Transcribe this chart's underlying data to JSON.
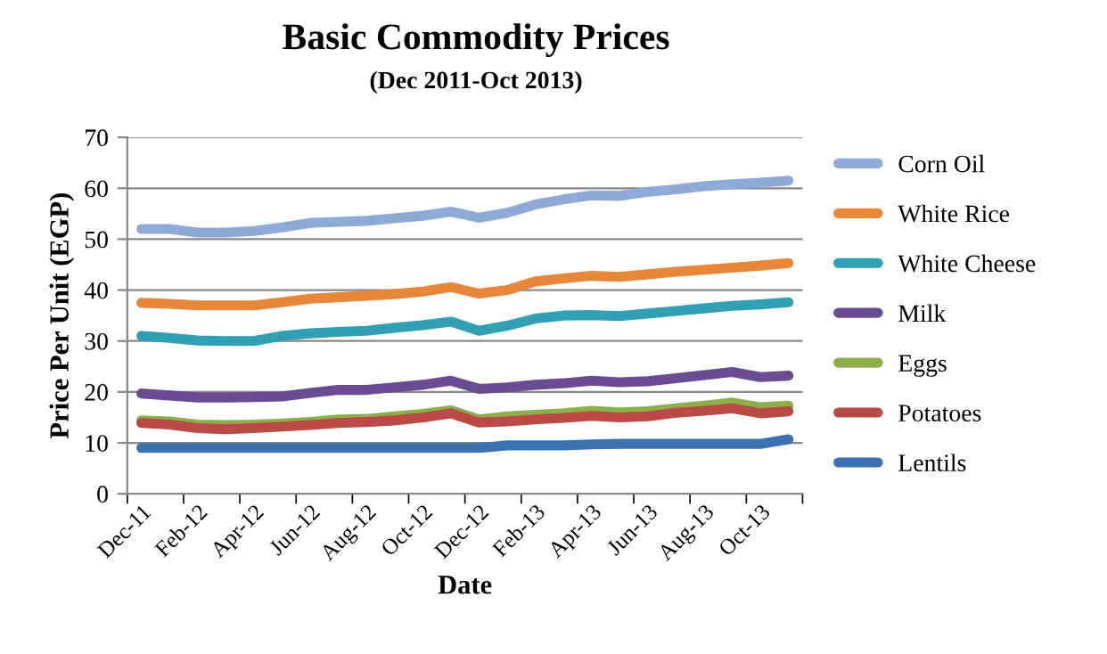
{
  "chart_data": {
    "type": "line",
    "title": "Basic Commodity Prices",
    "subtitle": "(Dec 2011-Oct 2013)",
    "xlabel": "Date",
    "ylabel": "Price Per Unit (EGP)",
    "categories": [
      "Dec-11",
      null,
      "Feb-12",
      null,
      "Apr-12",
      null,
      "Jun-12",
      null,
      "Aug-12",
      null,
      "Oct-12",
      null,
      "Dec-12",
      null,
      "Feb-13",
      null,
      "Apr-13",
      null,
      "Jun-13",
      null,
      "Aug-13",
      null,
      "Oct-13",
      null
    ],
    "series": [
      {
        "name": "Corn Oil",
        "color": "#8eaad6",
        "values": [
          52,
          52,
          51.3,
          51.3,
          51.6,
          52.3,
          53.2,
          53.4,
          53.6,
          54.1,
          54.6,
          55.4,
          54.2,
          55.2,
          56.8,
          57.8,
          58.6,
          58.5,
          59.3,
          59.8,
          60.4,
          60.8,
          61.1,
          61.5
        ]
      },
      {
        "name": "White Rice",
        "color": "#e6873a",
        "values": [
          37.5,
          37.3,
          37,
          37,
          37,
          37.6,
          38.3,
          38.6,
          38.9,
          39.2,
          39.7,
          40.6,
          39.3,
          40,
          41.7,
          42.3,
          42.8,
          42.6,
          43.1,
          43.6,
          44,
          44.4,
          44.8,
          45.3
        ]
      },
      {
        "name": "White Cheese",
        "color": "#31a0b3",
        "values": [
          31,
          30.6,
          30.1,
          30,
          30,
          31,
          31.5,
          31.8,
          32,
          32.6,
          33.1,
          33.8,
          32,
          33,
          34.4,
          35,
          35.1,
          34.9,
          35.4,
          35.9,
          36.4,
          36.9,
          37.2,
          37.6
        ]
      },
      {
        "name": "Milk",
        "color": "#6a4c93",
        "values": [
          19.7,
          19.3,
          18.9,
          18.9,
          19,
          19.1,
          19.8,
          20.4,
          20.4,
          20.9,
          21.4,
          22.2,
          20.6,
          20.9,
          21.4,
          21.7,
          22.2,
          21.9,
          22.1,
          22.7,
          23.3,
          23.9,
          22.9,
          23.2
        ]
      },
      {
        "name": "Eggs",
        "color": "#8bb04b",
        "values": [
          14.4,
          14.2,
          13.6,
          13.5,
          13.6,
          13.8,
          14.1,
          14.6,
          14.7,
          15.2,
          15.7,
          16.4,
          14.6,
          15.2,
          15.5,
          15.8,
          16.3,
          16,
          16.2,
          16.8,
          17.3,
          17.9,
          17,
          17.3
        ]
      },
      {
        "name": "Potatoes",
        "color": "#b94a45",
        "values": [
          13.9,
          13.6,
          12.9,
          12.7,
          12.9,
          13.2,
          13.5,
          13.9,
          14.1,
          14.4,
          15,
          15.8,
          14,
          14.2,
          14.6,
          14.9,
          15.3,
          15,
          15.2,
          15.9,
          16.3,
          16.8,
          15.8,
          16.2
        ]
      },
      {
        "name": "Lentils",
        "color": "#3d72b0",
        "values": [
          9,
          9,
          9,
          9,
          9,
          9,
          9,
          9,
          9,
          9,
          9,
          9,
          9,
          9.5,
          9.5,
          9.5,
          9.7,
          9.8,
          9.8,
          9.8,
          9.8,
          9.8,
          9.8,
          10.7
        ]
      }
    ],
    "ylim": [
      0,
      70
    ],
    "yticks": [
      0,
      10,
      20,
      30,
      40,
      50,
      60,
      70
    ],
    "grid": "y",
    "legend": "right",
    "marker": "none",
    "line_style": "solid"
  }
}
